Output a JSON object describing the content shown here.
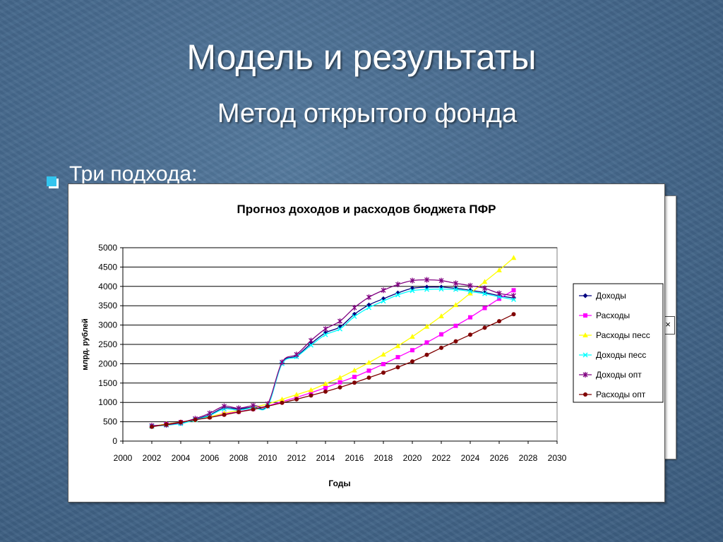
{
  "slide": {
    "title": "Модель и результаты",
    "subtitle": "Метод открытого фонда",
    "bullet": "Три подхода:"
  },
  "colors": {
    "background": "#46698d",
    "bullet": "#33c4ee"
  },
  "chart_data": {
    "type": "line",
    "title": "Прогноз доходов и расходов бюджета ПФР",
    "xlabel": "Годы",
    "ylabel": "млрд. рублей",
    "xlim": [
      2000,
      2030
    ],
    "ylim": [
      0,
      5000
    ],
    "xticks": [
      2000,
      2002,
      2004,
      2006,
      2008,
      2010,
      2012,
      2014,
      2016,
      2018,
      2020,
      2022,
      2024,
      2026,
      2028,
      2030
    ],
    "yticks": [
      0,
      500,
      1000,
      1500,
      2000,
      2500,
      3000,
      3500,
      4000,
      4500,
      5000
    ],
    "grid": "horizontal",
    "legend": "right",
    "x": [
      2002,
      2003,
      2004,
      2005,
      2006,
      2007,
      2008,
      2009,
      2010,
      2011,
      2012,
      2013,
      2014,
      2015,
      2016,
      2017,
      2018,
      2019,
      2020,
      2021,
      2022,
      2023,
      2024,
      2025,
      2026,
      2027
    ],
    "series": [
      {
        "name": "Доходы",
        "color": "#000080",
        "marker": "diamond",
        "values": [
          390,
          420,
          460,
          560,
          680,
          860,
          830,
          880,
          920,
          2020,
          2200,
          2520,
          2800,
          2950,
          3280,
          3520,
          3680,
          3830,
          3950,
          3980,
          3980,
          3950,
          3900,
          3840,
          3760,
          3700
        ]
      },
      {
        "name": "Расходы",
        "color": "#ff00ff",
        "marker": "square",
        "values": [
          380,
          440,
          490,
          550,
          620,
          700,
          760,
          830,
          910,
          1020,
          1130,
          1250,
          1380,
          1520,
          1660,
          1820,
          1990,
          2170,
          2350,
          2550,
          2760,
          2980,
          3200,
          3440,
          3680,
          3900
        ]
      },
      {
        "name": "Расходы песс",
        "color": "#ffff00",
        "marker": "triangle",
        "values": [
          380,
          440,
          490,
          550,
          630,
          720,
          790,
          870,
          960,
          1080,
          1200,
          1320,
          1480,
          1640,
          1830,
          2030,
          2240,
          2460,
          2700,
          2960,
          3230,
          3520,
          3820,
          4120,
          4420,
          4740
        ]
      },
      {
        "name": "Доходы песс",
        "color": "#00ffff",
        "marker": "x",
        "values": [
          380,
          410,
          450,
          550,
          660,
          830,
          800,
          860,
          900,
          2000,
          2180,
          2480,
          2750,
          2900,
          3220,
          3450,
          3620,
          3780,
          3890,
          3920,
          3930,
          3920,
          3870,
          3810,
          3730,
          3660
        ]
      },
      {
        "name": "Доходы опт",
        "color": "#800080",
        "marker": "star",
        "values": [
          400,
          420,
          480,
          580,
          720,
          900,
          850,
          920,
          960,
          2040,
          2240,
          2600,
          2900,
          3100,
          3450,
          3720,
          3900,
          4050,
          4150,
          4170,
          4150,
          4080,
          4020,
          3950,
          3820,
          3760
        ]
      },
      {
        "name": "Расходы опт",
        "color": "#800000",
        "marker": "circle",
        "values": [
          370,
          430,
          490,
          550,
          610,
          680,
          750,
          820,
          900,
          990,
          1080,
          1180,
          1280,
          1390,
          1510,
          1640,
          1770,
          1910,
          2060,
          2230,
          2410,
          2580,
          2750,
          2930,
          3100,
          3280
        ]
      }
    ]
  }
}
